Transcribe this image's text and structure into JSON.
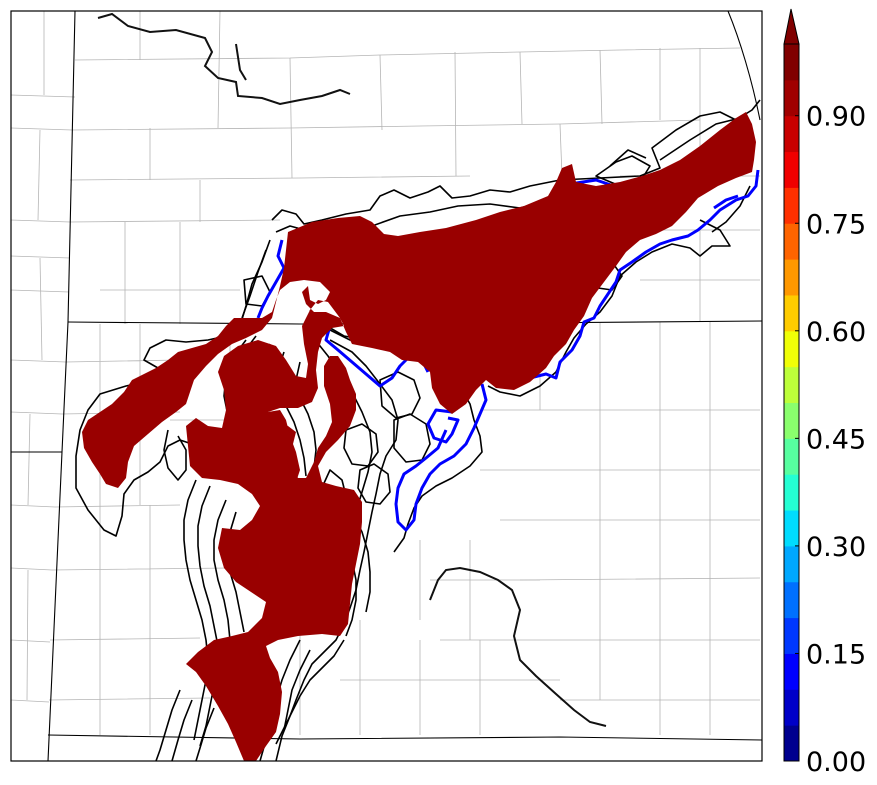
{
  "colorbar": {
    "ticks": [
      "0.00",
      "0.15",
      "0.30",
      "0.45",
      "0.60",
      "0.75",
      "0.90"
    ],
    "tick_values": [
      0.0,
      0.15,
      0.3,
      0.45,
      0.6,
      0.75,
      0.9
    ],
    "range": [
      0.0,
      1.0
    ],
    "extend": "max",
    "levels": [
      0.0,
      0.05,
      0.1,
      0.15,
      0.2,
      0.25,
      0.3,
      0.35,
      0.4,
      0.45,
      0.5,
      0.55,
      0.6,
      0.65,
      0.7,
      0.75,
      0.8,
      0.85,
      0.9,
      0.95,
      1.0
    ],
    "colors": [
      "#00008f",
      "#0000c8",
      "#0000ff",
      "#0038ff",
      "#0070ff",
      "#00a8ff",
      "#00dcfe",
      "#24ffd3",
      "#57ffa0",
      "#8aff6d",
      "#bdff3a",
      "#f0ff07",
      "#ffcc00",
      "#ff9800",
      "#ff6400",
      "#ff3000",
      "#f00000",
      "#c80000",
      "#a00000",
      "#800000"
    ]
  },
  "colors": {
    "probability_fill": "#990000",
    "member_contours": "#000000",
    "observed_contour": "#0000ff",
    "county_lines": "#b0b0b0",
    "state_lines": "#000000",
    "rivers": "#000000"
  }
}
